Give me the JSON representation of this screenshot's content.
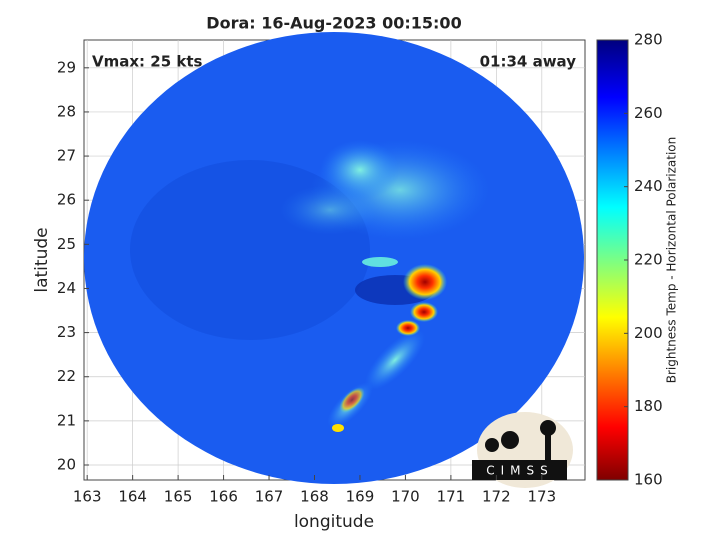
{
  "chart_data": {
    "type": "heatmap",
    "title": "Dora: 16-Aug-2023 00:15:00",
    "annotations": [
      "Vmax: 25 kts",
      "01:34 away"
    ],
    "xlabel": "longitude",
    "ylabel": "latitude",
    "xlim": [
      162.93,
      173.95
    ],
    "xticks": [
      163,
      164,
      165,
      166,
      167,
      168,
      169,
      170,
      171,
      172,
      173
    ],
    "ylim": [
      19.66,
      29.63
    ],
    "yticks": [
      20,
      21,
      22,
      23,
      24,
      25,
      26,
      27,
      28,
      29
    ],
    "grid": true,
    "colorbar_label": "Brightness Temp - Horizontal Polarization",
    "clim": [
      160,
      280
    ],
    "cticks": [
      160,
      180,
      200,
      220,
      240,
      260,
      280
    ]
  },
  "logo": "CIMSS"
}
